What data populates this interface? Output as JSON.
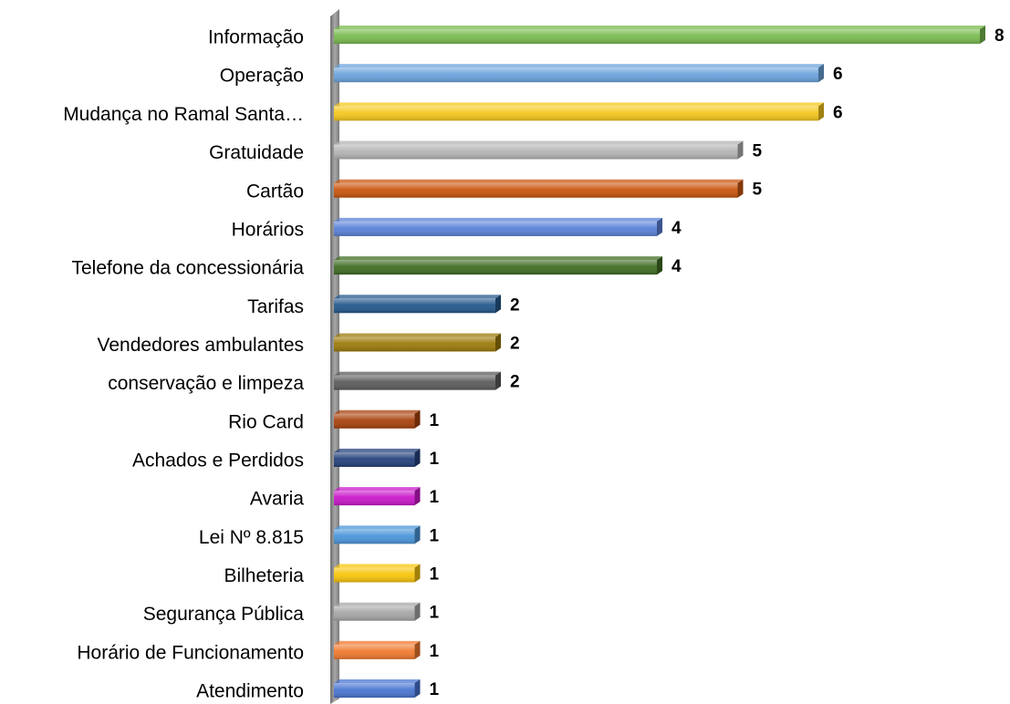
{
  "chart_data": {
    "type": "bar",
    "orientation": "horizontal",
    "categories": [
      "Informação",
      "Operação",
      "Mudança no Ramal Santa…",
      "Gratuidade",
      "Cartão",
      "Horários",
      "Telefone da concessionária",
      "Tarifas",
      "Vendedores ambulantes",
      "conservação e limpeza",
      "Rio Card",
      "Achados e Perdidos",
      "Avaria",
      "Lei Nº 8.815",
      "Bilheteria",
      "Segurança Pública",
      "Horário de Funcionamento",
      "Atendimento"
    ],
    "values": [
      8,
      6,
      6,
      5,
      5,
      4,
      4,
      2,
      2,
      2,
      1,
      1,
      1,
      1,
      1,
      1,
      1,
      1
    ],
    "colors": [
      "#79bb4e",
      "#6ca4de",
      "#f6c81e",
      "#b4b4b4",
      "#c9560f",
      "#5b82d8",
      "#3f6d23",
      "#25598c",
      "#9c7a0a",
      "#5c5c5c",
      "#a8420d",
      "#25427c",
      "#c918c9",
      "#4b96da",
      "#f8c50c",
      "#a7a7a7",
      "#f17a30",
      "#4a75d1"
    ],
    "xlim": [
      0,
      8
    ]
  }
}
